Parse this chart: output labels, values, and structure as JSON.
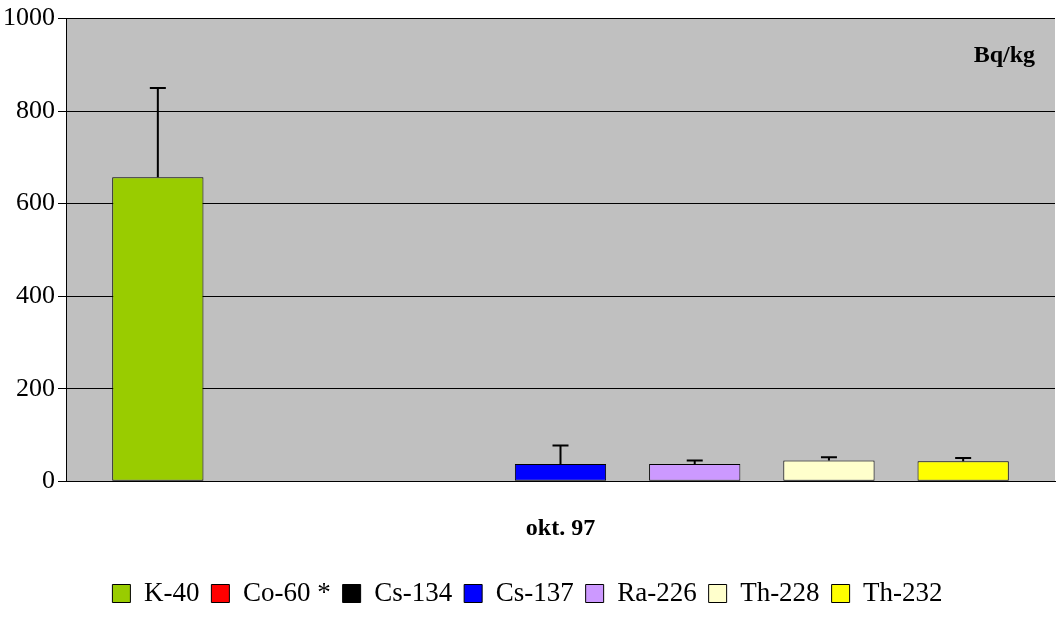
{
  "chart_data": {
    "type": "bar",
    "categories": [
      "okt. 97"
    ],
    "series": [
      {
        "name": "K-40",
        "color": "#99cc00",
        "values": [
          657
        ],
        "errors": [
          [
            657,
            850
          ]
        ]
      },
      {
        "name": "Co-60 *",
        "color": "#ff0000",
        "values": [
          0
        ],
        "errors": [
          null
        ]
      },
      {
        "name": "Cs-134",
        "color": "#000000",
        "values": [
          1
        ],
        "errors": [
          null
        ]
      },
      {
        "name": "Cs-137",
        "color": "#0000ff",
        "values": [
          37
        ],
        "errors": [
          [
            37,
            77
          ]
        ]
      },
      {
        "name": "Ra-226",
        "color": "#cc99ff",
        "values": [
          37
        ],
        "errors": [
          [
            37,
            45
          ]
        ]
      },
      {
        "name": "Th-228",
        "color": "#ffffcc",
        "values": [
          45
        ],
        "errors": [
          [
            45,
            52
          ]
        ]
      },
      {
        "name": "Th-232",
        "color": "#ffff00",
        "values": [
          43
        ],
        "errors": [
          [
            43,
            50
          ]
        ]
      }
    ],
    "ylim": [
      0,
      1000
    ],
    "yticks": [
      0,
      200,
      400,
      600,
      800,
      1000
    ],
    "grid": "y",
    "legend": "bottom",
    "annotations": [
      "Bq/kg"
    ]
  }
}
